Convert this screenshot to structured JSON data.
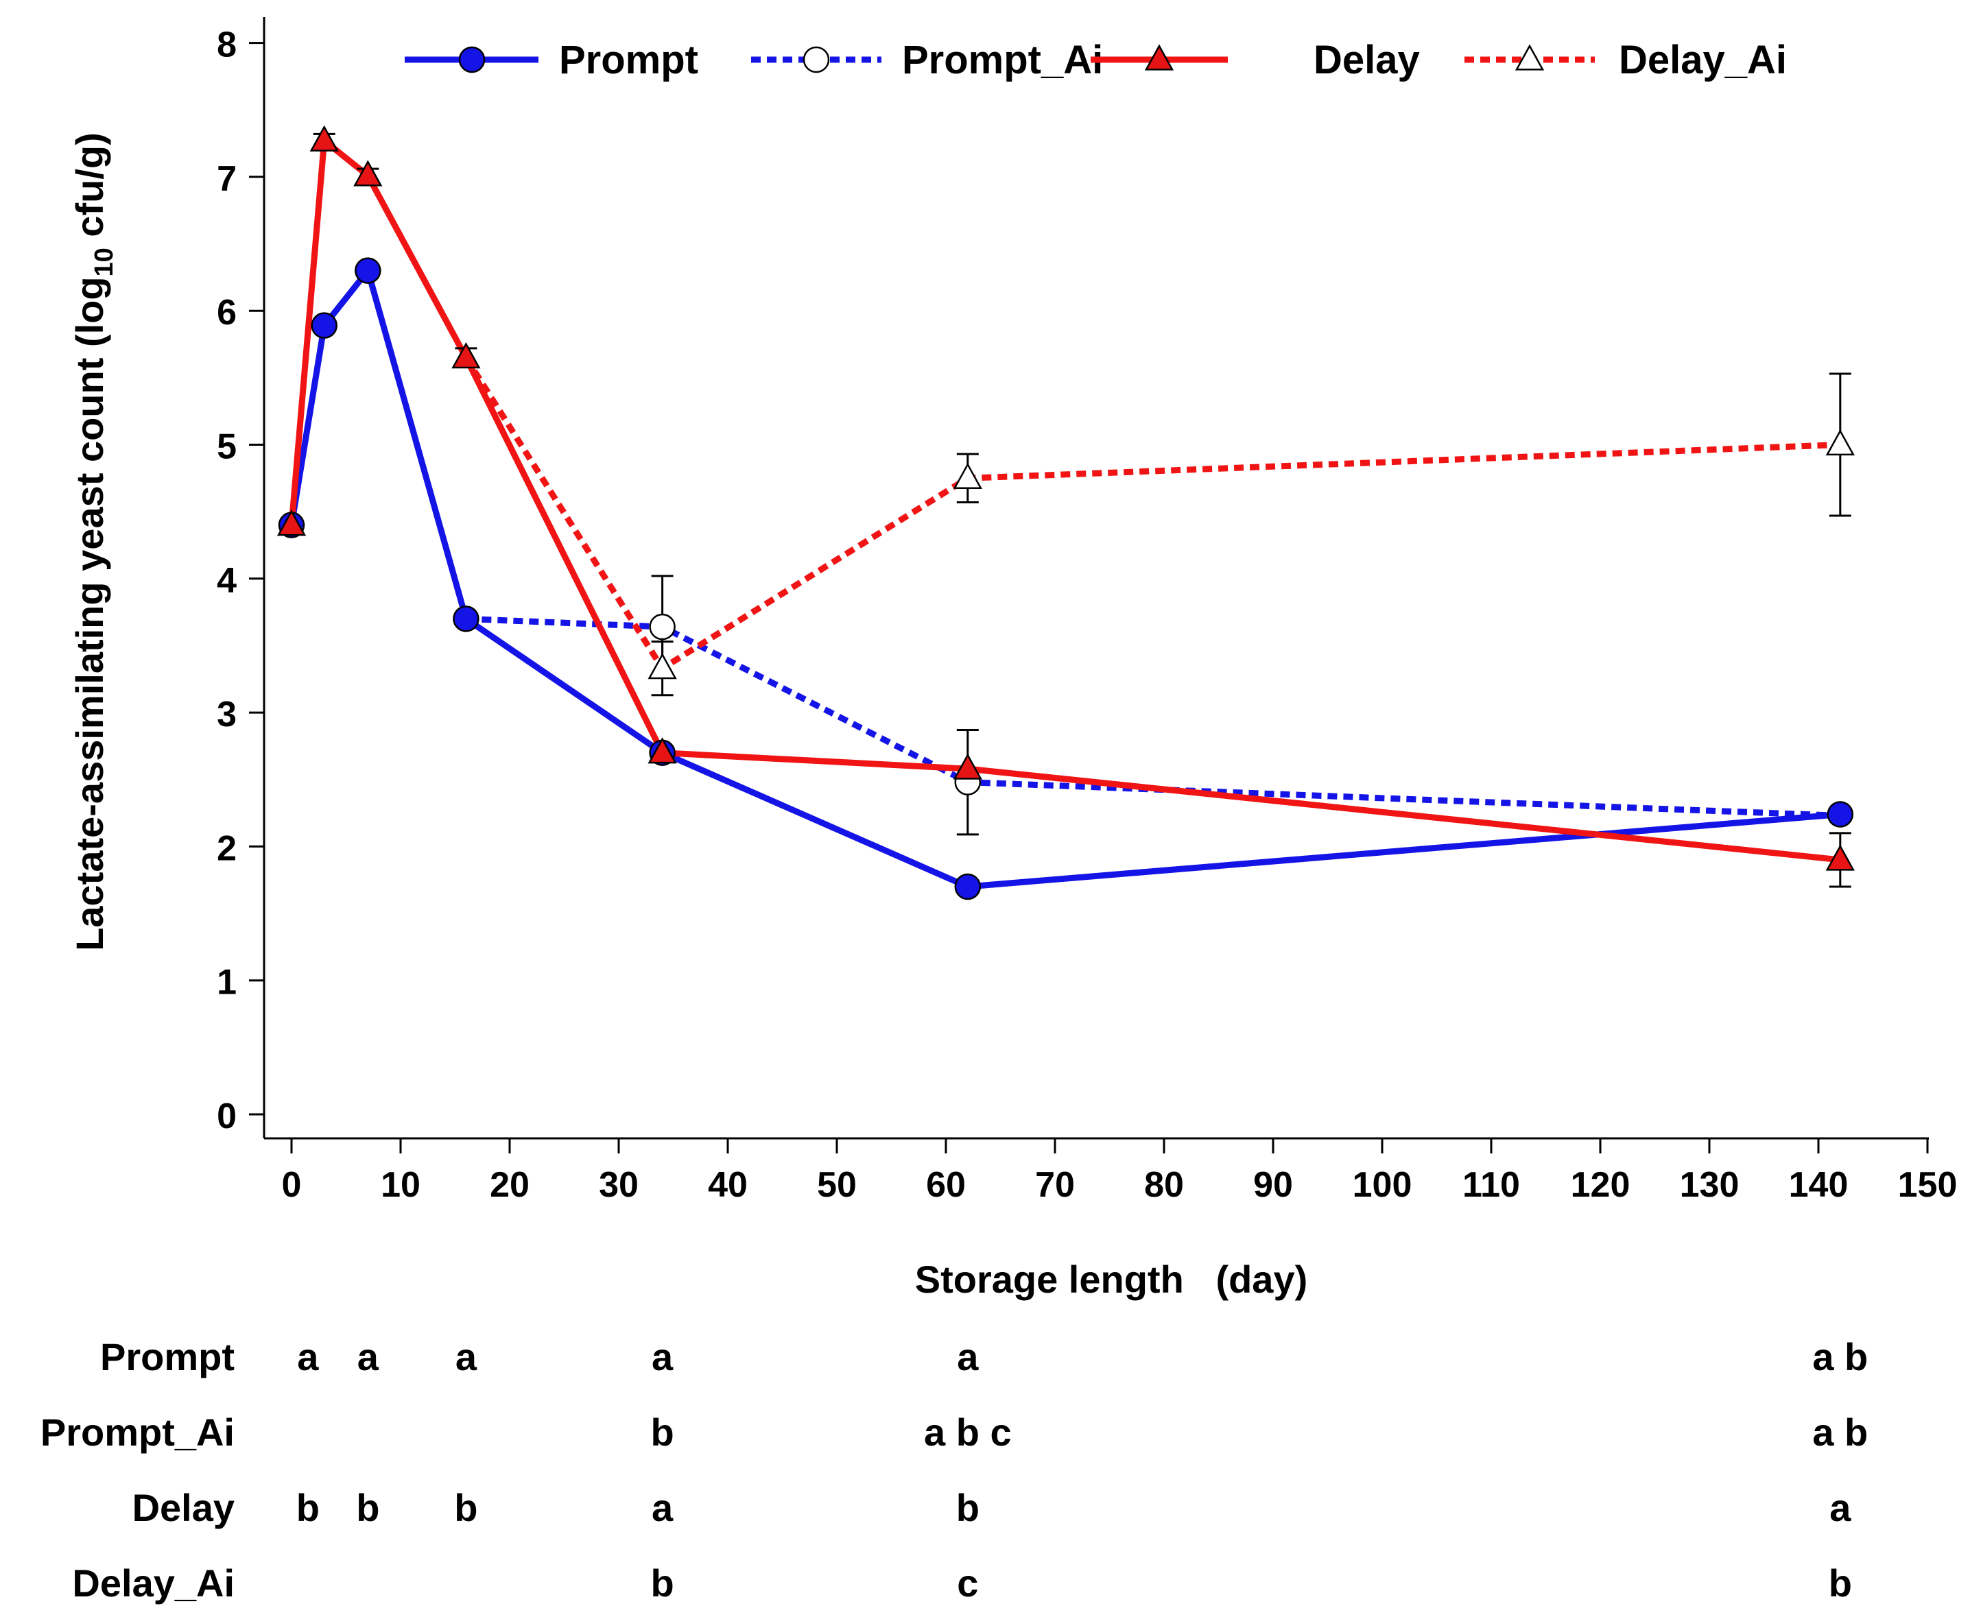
{
  "chart_data": {
    "type": "line",
    "title": "",
    "xlabel": "Storage length   (day)",
    "ylabel_main": "Lactate-assimilating yeast count (log",
    "ylabel_sub": "10",
    "ylabel_end": " cfu/g)",
    "xlim": [
      -2,
      150
    ],
    "ylim": [
      0,
      8
    ],
    "xticks": [
      0,
      10,
      20,
      30,
      40,
      50,
      60,
      70,
      80,
      90,
      100,
      110,
      120,
      130,
      140,
      150
    ],
    "yticks": [
      0,
      1,
      2,
      3,
      4,
      5,
      6,
      7,
      8
    ],
    "grid": false,
    "legend_position": "top",
    "series": [
      {
        "name": "Prompt",
        "color": "#1414e6",
        "line_style": "solid",
        "marker": "circle",
        "marker_fill": "#1414e6",
        "points": [
          {
            "x": 0,
            "y": 4.4
          },
          {
            "x": 3,
            "y": 5.89
          },
          {
            "x": 7,
            "y": 6.3
          },
          {
            "x": 16,
            "y": 3.7
          },
          {
            "x": 34,
            "y": 2.7
          },
          {
            "x": 62,
            "y": 1.7
          },
          {
            "x": 142,
            "y": 2.24
          }
        ]
      },
      {
        "name": "Prompt_Ai",
        "color": "#1414e6",
        "line_style": "dotted",
        "marker": "circle",
        "marker_fill": "#ffffff",
        "points": [
          {
            "x": 16,
            "y": 3.7
          },
          {
            "x": 34,
            "y": 3.64,
            "err": 0.38
          },
          {
            "x": 62,
            "y": 2.48,
            "err": 0.39
          },
          {
            "x": 142,
            "y": 2.23
          }
        ]
      },
      {
        "name": "Delay",
        "color": "#f01414",
        "line_style": "solid",
        "marker": "triangle",
        "marker_fill": "#e61414",
        "points": [
          {
            "x": 0,
            "y": 4.4
          },
          {
            "x": 3,
            "y": 7.27,
            "err": 0.05
          },
          {
            "x": 7,
            "y": 7.01,
            "err": 0.05
          },
          {
            "x": 16,
            "y": 5.65,
            "err": 0.07
          },
          {
            "x": 34,
            "y": 2.7
          },
          {
            "x": 62,
            "y": 2.58
          },
          {
            "x": 142,
            "y": 1.9,
            "err": 0.2
          }
        ]
      },
      {
        "name": "Delay_Ai",
        "color": "#f01414",
        "line_style": "dotted",
        "marker": "triangle",
        "marker_fill": "#ffffff",
        "points": [
          {
            "x": 16,
            "y": 5.65
          },
          {
            "x": 34,
            "y": 3.33,
            "err": 0.2
          },
          {
            "x": 62,
            "y": 4.75,
            "err": 0.18
          },
          {
            "x": 142,
            "y": 5.0,
            "err": 0.53
          }
        ]
      }
    ],
    "significance_table": {
      "rows": [
        {
          "label": "Prompt",
          "letters": [
            {
              "x": 1.5,
              "text": "a"
            },
            {
              "x": 7,
              "text": "a"
            },
            {
              "x": 16,
              "text": "a"
            },
            {
              "x": 34,
              "text": "a"
            },
            {
              "x": 62,
              "text": "a"
            },
            {
              "x": 142,
              "text": "a b"
            }
          ]
        },
        {
          "label": "Prompt_Ai",
          "letters": [
            {
              "x": 34,
              "text": "b"
            },
            {
              "x": 62,
              "text": "a b c"
            },
            {
              "x": 142,
              "text": "a b"
            }
          ]
        },
        {
          "label": "Delay",
          "letters": [
            {
              "x": 1.5,
              "text": "b"
            },
            {
              "x": 7,
              "text": "b"
            },
            {
              "x": 16,
              "text": "b"
            },
            {
              "x": 34,
              "text": "a"
            },
            {
              "x": 62,
              "text": "b"
            },
            {
              "x": 142,
              "text": "a"
            }
          ]
        },
        {
          "label": "Delay_Ai",
          "letters": [
            {
              "x": 34,
              "text": "b"
            },
            {
              "x": 62,
              "text": "c"
            },
            {
              "x": 142,
              "text": "b"
            }
          ]
        }
      ]
    }
  }
}
